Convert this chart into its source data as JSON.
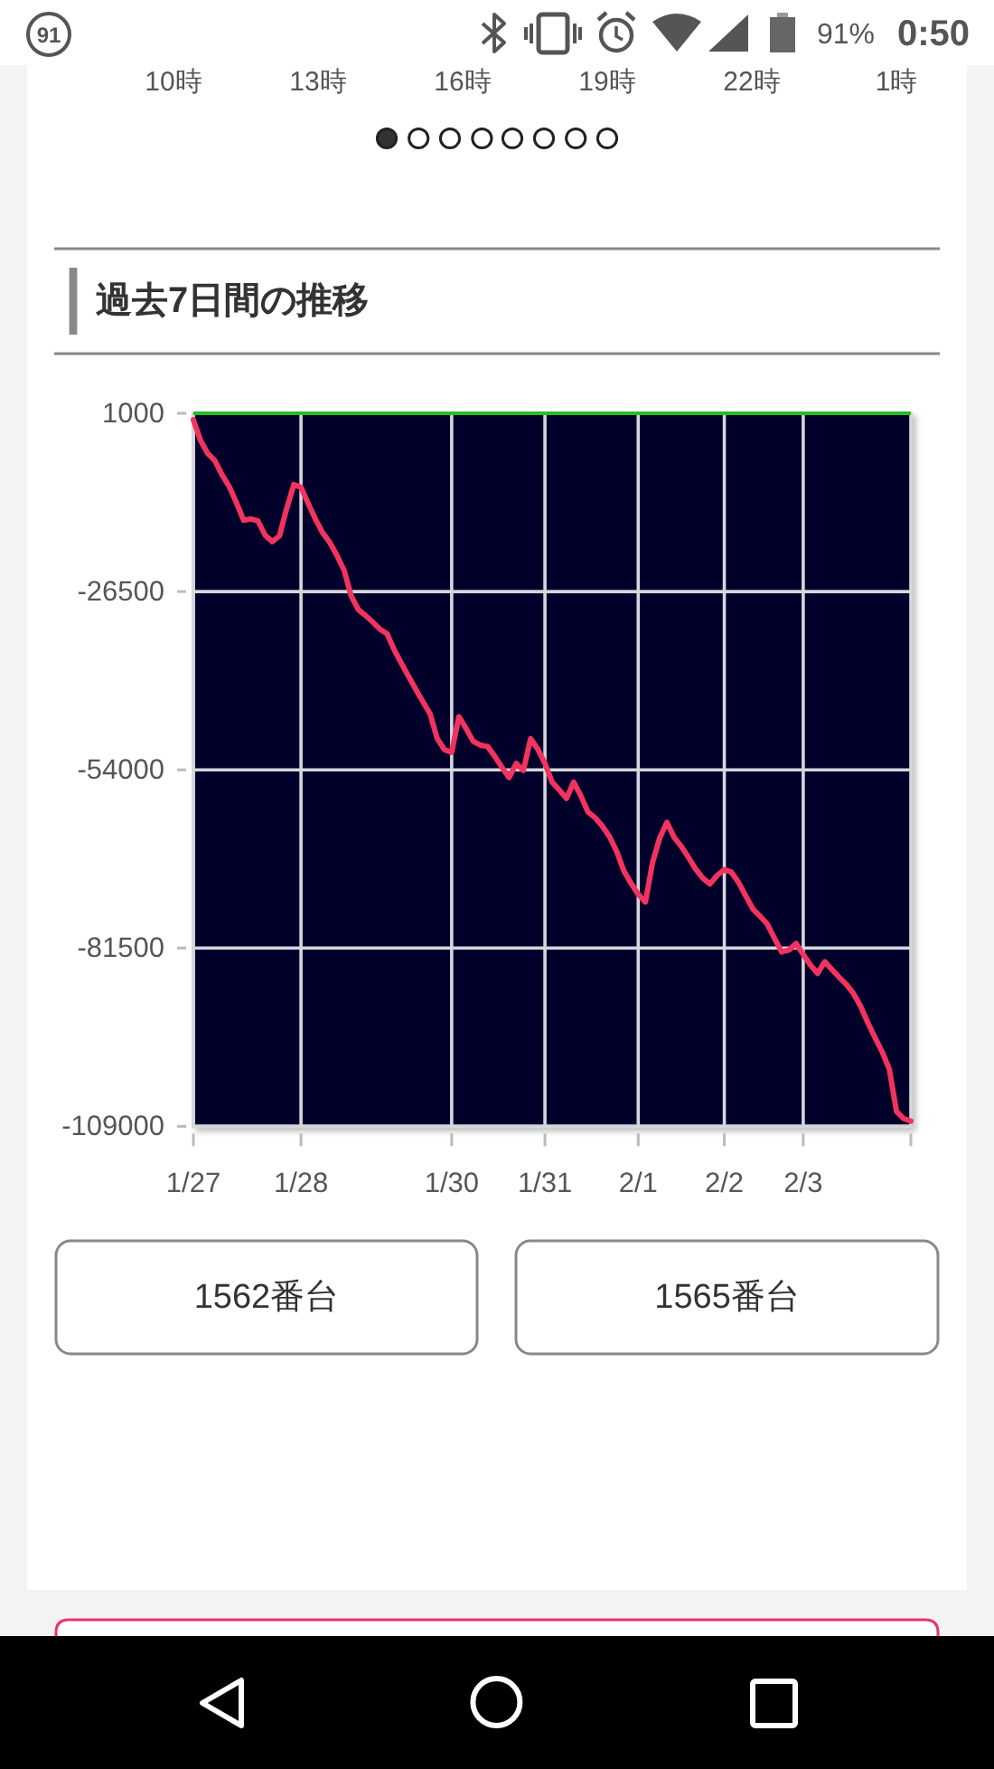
{
  "chart_data": {
    "type": "line",
    "title": "過去7日間の推移",
    "categories": [
      "1/27",
      null,
      null,
      null,
      null,
      null,
      null,
      null,
      null,
      null,
      null,
      null,
      null,
      null,
      null,
      "1/28",
      null,
      null,
      null,
      null,
      null,
      null,
      null,
      null,
      null,
      null,
      null,
      null,
      null,
      null,
      null,
      null,
      null,
      null,
      null,
      null,
      "1/30",
      null,
      null,
      null,
      null,
      null,
      null,
      null,
      null,
      null,
      null,
      null,
      null,
      "1/31",
      null,
      null,
      null,
      null,
      null,
      null,
      null,
      null,
      null,
      null,
      null,
      null,
      "2/1",
      null,
      null,
      null,
      null,
      null,
      null,
      null,
      null,
      null,
      null,
      null,
      "2/2",
      null,
      null,
      null,
      null,
      null,
      null,
      null,
      null,
      null,
      null,
      "2/3",
      null,
      null,
      null,
      null,
      null,
      null,
      null,
      null,
      null,
      null,
      null,
      null,
      null,
      null,
      null
    ],
    "values": [
      0,
      -3200,
      -5200,
      -6300,
      -8500,
      -10300,
      -12800,
      -15500,
      -15300,
      -15600,
      -17800,
      -18800,
      -17900,
      -13700,
      -10000,
      -10400,
      -12900,
      -15300,
      -17400,
      -18900,
      -20900,
      -23200,
      -27200,
      -29300,
      -30200,
      -31200,
      -32300,
      -33000,
      -35500,
      -37600,
      -39600,
      -41600,
      -43500,
      -45400,
      -49200,
      -50900,
      -51300,
      -45800,
      -47600,
      -49600,
      -50200,
      -50400,
      -51900,
      -53600,
      -55200,
      -53000,
      -54100,
      -49200,
      -50800,
      -53000,
      -55900,
      -57100,
      -58400,
      -55900,
      -58000,
      -60500,
      -61400,
      -62700,
      -64300,
      -66600,
      -69600,
      -71500,
      -73200,
      -74400,
      -68300,
      -64500,
      -62100,
      -64400,
      -65800,
      -67500,
      -69300,
      -70700,
      -71600,
      -70300,
      -69400,
      -69800,
      -71400,
      -73500,
      -75500,
      -76600,
      -77800,
      -80000,
      -82100,
      -81800,
      -80800,
      -82500,
      -84100,
      -85400,
      -83600,
      -84800,
      -86000,
      -87100,
      -88500,
      -90500,
      -93000,
      -95300,
      -97500,
      -100200,
      -106700,
      -107800,
      -108200
    ],
    "color": "#f2335f",
    "ylim": [
      -109000,
      1000
    ],
    "yticks": [
      1000,
      -26500,
      -54000,
      -81500,
      -109000
    ],
    "grid": true,
    "ref_lines": [
      {
        "axis": "y",
        "value": 1000,
        "color": "#21c121"
      }
    ],
    "annotations": [
      "91",
      "91%",
      "0:50",
      "10時",
      "13時",
      "16時",
      "19時",
      "22時",
      "1時",
      "1562番台",
      "1565番台"
    ]
  }
}
